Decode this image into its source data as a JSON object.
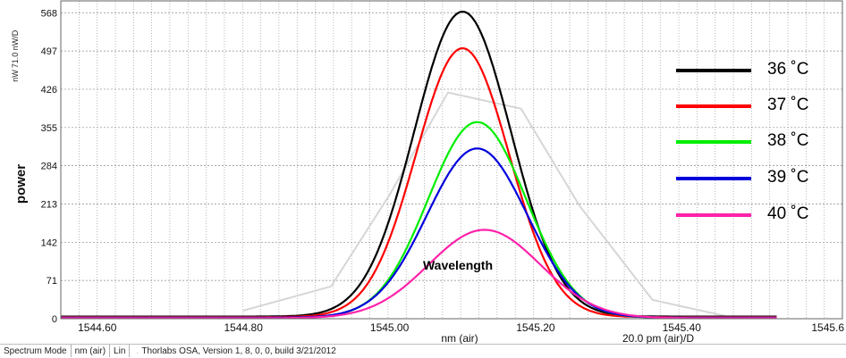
{
  "chart_data": {
    "type": "line",
    "ylabel": "power",
    "y_unit_label": "nW",
    "y_scale_label": "71.0 nW/D",
    "xlabel": "nm (air)",
    "x_resolution_label": "20.0 pm (air)/D",
    "annotation": "Wavelength",
    "xlim": [
      1544.55,
      1545.62
    ],
    "ylim": [
      0,
      590
    ],
    "x_ticks": [
      "1544.60",
      "1544.80",
      "1545.00",
      "1545.20",
      "1545.40",
      "1545.6"
    ],
    "y_ticks": [
      "0",
      "71",
      "142",
      "213",
      "284",
      "355",
      "426",
      "497",
      "568"
    ],
    "grid": true,
    "legend_position": "right",
    "series": [
      {
        "name": "36 ˚C",
        "color": "#000000",
        "peak_x": 1545.1,
        "peak_y": 570,
        "fwhm_nm": 0.156,
        "baseline": 4
      },
      {
        "name": "37 ˚C",
        "color": "#ff0000",
        "peak_x": 1545.1,
        "peak_y": 502,
        "fwhm_nm": 0.15,
        "baseline": 3
      },
      {
        "name": "38 ˚C",
        "color": "#00ee00",
        "peak_x": 1545.12,
        "peak_y": 365,
        "fwhm_nm": 0.158,
        "baseline": 2
      },
      {
        "name": "39 ˚C",
        "color": "#0000dd",
        "peak_x": 1545.12,
        "peak_y": 316,
        "fwhm_nm": 0.162,
        "baseline": 2
      },
      {
        "name": "40 ˚C",
        "color": "#ff22aa",
        "peak_x": 1545.13,
        "peak_y": 165,
        "fwhm_nm": 0.18,
        "baseline": 1
      }
    ],
    "ghost_trace": {
      "color": "#d6d6d6",
      "x": [
        1544.8,
        1544.92,
        1545.0,
        1545.08,
        1545.18,
        1545.26,
        1545.36,
        1545.46
      ],
      "y": [
        15,
        60,
        230,
        420,
        390,
        210,
        35,
        5
      ]
    }
  },
  "status_bar": {
    "mode": "Spectrum Mode",
    "unit": "nm (air)",
    "scale": "Lin",
    "blank": "",
    "version": "Thorlabs OSA, Version 1, 8, 0, 0, build 3/21/2012"
  }
}
